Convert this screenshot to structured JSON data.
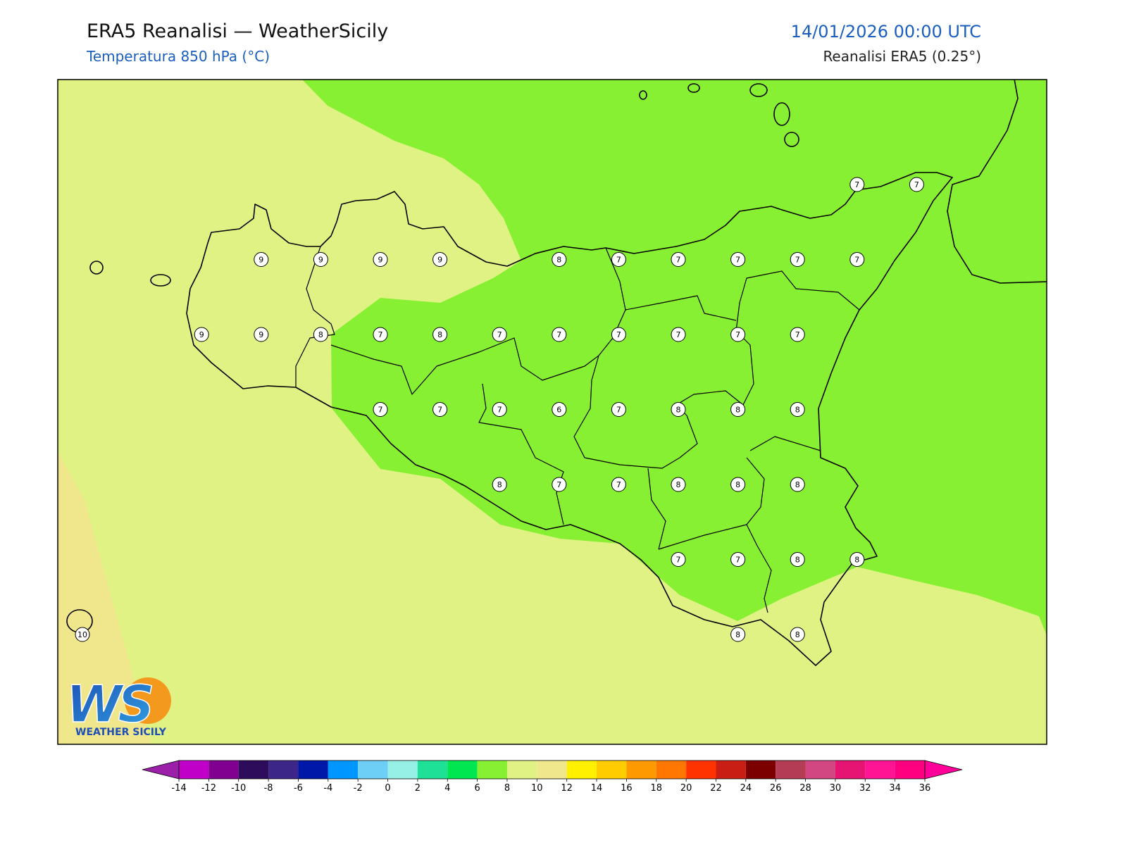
{
  "header": {
    "title": "ERA5 Reanalisi — WeatherSicily",
    "subtitle": "Temperatura 850 hPa (°C)",
    "datetime": "14/01/2026 00:00 UTC",
    "source": "Reanalisi ERA5 (0.25°)"
  },
  "map": {
    "grid_values": [
      [
        null,
        null,
        null,
        null,
        null,
        null,
        null,
        null,
        null,
        null,
        null,
        null,
        null,
        7,
        7
      ],
      [
        null,
        null,
        null,
        9,
        9,
        9,
        9,
        null,
        8,
        7,
        7,
        7,
        7,
        7,
        null
      ],
      [
        null,
        null,
        9,
        9,
        8,
        7,
        8,
        7,
        7,
        7,
        7,
        7,
        7,
        null,
        null
      ],
      [
        null,
        null,
        null,
        null,
        null,
        7,
        7,
        7,
        6,
        7,
        8,
        8,
        8,
        null,
        null
      ],
      [
        null,
        null,
        null,
        null,
        null,
        null,
        null,
        8,
        7,
        7,
        8,
        8,
        8,
        null,
        null
      ],
      [
        null,
        null,
        null,
        null,
        null,
        null,
        null,
        null,
        null,
        null,
        7,
        7,
        8,
        8,
        null
      ],
      [
        10,
        null,
        null,
        null,
        null,
        null,
        null,
        null,
        null,
        null,
        null,
        8,
        8,
        null,
        null
      ]
    ]
  },
  "colorbar": {
    "ticks": [
      -14,
      -12,
      -10,
      -8,
      -6,
      -4,
      -2,
      0,
      2,
      4,
      6,
      8,
      10,
      12,
      14,
      16,
      18,
      20,
      22,
      24,
      26,
      28,
      30,
      32,
      34,
      36
    ],
    "colors": [
      "#c000c8",
      "#820090",
      "#2e0c5c",
      "#3c2688",
      "#0018a8",
      "#0096ff",
      "#6ecff6",
      "#96f0e6",
      "#1ee096",
      "#00e650",
      "#87f032",
      "#e1f285",
      "#f0e68c",
      "#fff000",
      "#ffcc00",
      "#ff9900",
      "#ff7700",
      "#ff3300",
      "#c81e14",
      "#7d0000",
      "#b43c55",
      "#d24682",
      "#e61473",
      "#ff1493",
      "#ff0080"
    ],
    "extend_colors": [
      "#9b1fa8",
      "#ff0099"
    ]
  },
  "logo": {
    "text": "WS",
    "caption": "WEATHER SICILY"
  }
}
